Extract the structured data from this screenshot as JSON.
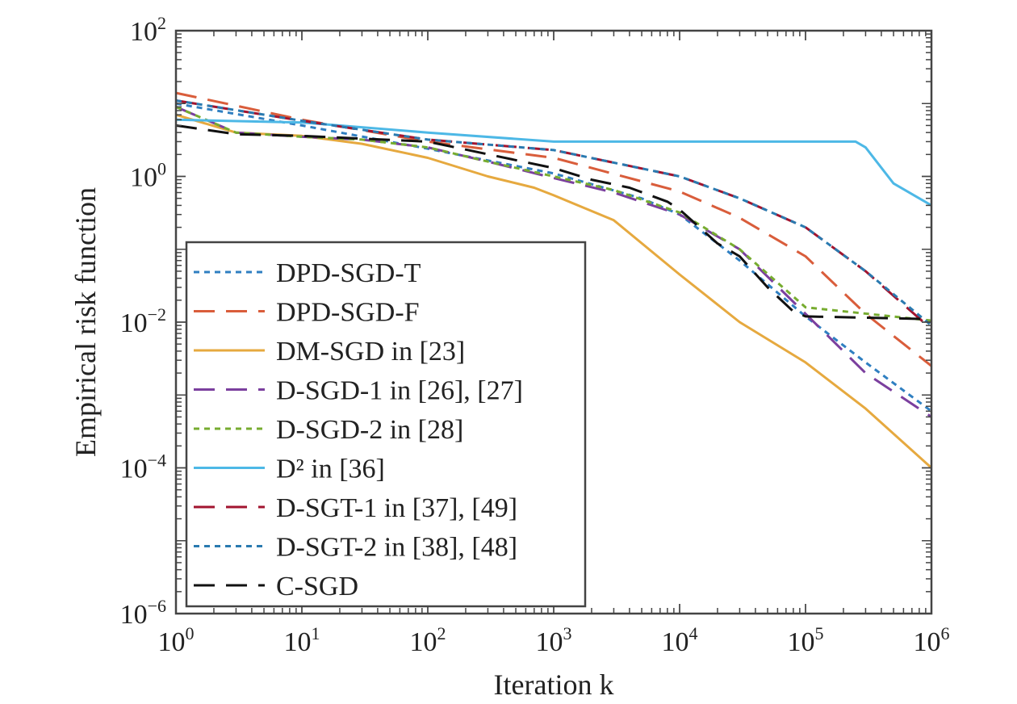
{
  "chart_data": {
    "type": "line",
    "xlabel": "Iteration k",
    "ylabel": "Empirical risk function",
    "x_scale": "log",
    "y_scale": "log",
    "xlim": [
      1,
      1000000
    ],
    "ylim": [
      1e-06,
      100
    ],
    "x_ticks": [
      {
        "value": 1,
        "base": "10",
        "exp": "0"
      },
      {
        "value": 10,
        "base": "10",
        "exp": "1"
      },
      {
        "value": 100,
        "base": "10",
        "exp": "2"
      },
      {
        "value": 1000,
        "base": "10",
        "exp": "3"
      },
      {
        "value": 10000,
        "base": "10",
        "exp": "4"
      },
      {
        "value": 100000,
        "base": "10",
        "exp": "5"
      },
      {
        "value": 1000000,
        "base": "10",
        "exp": "6"
      }
    ],
    "y_ticks": [
      {
        "value": 100,
        "base": "10",
        "exp": "2"
      },
      {
        "value": 1,
        "base": "10",
        "exp": "0"
      },
      {
        "value": 0.01,
        "base": "10",
        "exp": "−2"
      },
      {
        "value": 0.0001,
        "base": "10",
        "exp": "−4"
      },
      {
        "value": 1e-06,
        "base": "10",
        "exp": "−6"
      }
    ],
    "grid": false,
    "legend_position": "bottom-left",
    "series": [
      {
        "name": "DPD-SGD-T",
        "color": "#2f7fc1",
        "dash": "dotted",
        "x": [
          1,
          10,
          100,
          1000,
          5000,
          10000,
          30000,
          100000,
          300000,
          1000000
        ],
        "y": [
          10,
          5,
          2.4,
          1.1,
          0.5,
          0.3,
          0.07,
          0.012,
          0.0028,
          0.0006
        ]
      },
      {
        "name": "DPD-SGD-F",
        "color": "#d95d3b",
        "dash": "long-dash",
        "x": [
          1,
          10,
          100,
          1000,
          10000,
          30000,
          100000,
          300000,
          1000000
        ],
        "y": [
          14,
          6,
          3,
          1.8,
          0.62,
          0.27,
          0.08,
          0.013,
          0.0025
        ]
      },
      {
        "name": "DM-SGD in [23]",
        "color": "#e6a93f",
        "dash": "solid",
        "x": [
          1,
          3,
          10,
          30,
          100,
          300,
          700,
          1000,
          3000,
          10000,
          30000,
          100000,
          300000,
          1000000
        ],
        "y": [
          7,
          4,
          3.6,
          2.8,
          1.8,
          1.0,
          0.7,
          0.55,
          0.25,
          0.045,
          0.01,
          0.0028,
          0.00065,
          0.0001
        ]
      },
      {
        "name": "D-SGD-1 in [26], [27]",
        "color": "#7b3f9e",
        "dash": "long-dash",
        "x": [
          1,
          3,
          10,
          30,
          100,
          300,
          1000,
          3000,
          10000,
          30000,
          100000,
          300000,
          1000000
        ],
        "y": [
          9,
          4,
          3.5,
          3.2,
          2.5,
          1.6,
          0.95,
          0.6,
          0.3,
          0.1,
          0.013,
          0.002,
          0.0005
        ]
      },
      {
        "name": "D-SGD-2 in [28]",
        "color": "#77ac30",
        "dash": "dotted",
        "x": [
          1,
          3,
          10,
          30,
          100,
          300,
          1000,
          3000,
          10000,
          30000,
          100000,
          1000000
        ],
        "y": [
          9,
          4,
          3.5,
          3.2,
          2.5,
          1.6,
          1.0,
          0.65,
          0.32,
          0.1,
          0.016,
          0.0105
        ]
      },
      {
        "name": "D² in [36]",
        "color": "#4db8e6",
        "dash": "solid",
        "x": [
          1,
          10,
          100,
          1000,
          10000,
          100000,
          250000,
          300000,
          500000,
          1000000
        ],
        "y": [
          6,
          5.5,
          4,
          3,
          3,
          3,
          3,
          2.5,
          0.8,
          0.4
        ]
      },
      {
        "name": "D-SGT-1 in [37], [49]",
        "color": "#a2142f",
        "dash": "long-dash",
        "x": [
          1,
          10,
          100,
          1000,
          10000,
          30000,
          100000,
          300000,
          1000000
        ],
        "y": [
          11,
          5.8,
          3.2,
          2.3,
          1.0,
          0.5,
          0.2,
          0.05,
          0.008
        ]
      },
      {
        "name": "D-SGT-2 in [38], [48]",
        "color": "#2a7ab0",
        "dash": "dotted",
        "x": [
          1,
          10,
          100,
          1000,
          10000,
          30000,
          100000,
          300000,
          1000000
        ],
        "y": [
          11,
          5.8,
          3.2,
          2.3,
          1.0,
          0.5,
          0.2,
          0.05,
          0.009
        ]
      },
      {
        "name": "C-SGD",
        "color": "#111111",
        "dash": "long-dash",
        "x": [
          1,
          3,
          10,
          30,
          100,
          1000,
          2000,
          4000,
          8000,
          10000,
          20000,
          30000,
          50000,
          80000,
          100000,
          1000000
        ],
        "y": [
          5,
          3.8,
          3.6,
          3.3,
          3,
          1.3,
          0.9,
          0.7,
          0.45,
          0.35,
          0.12,
          0.08,
          0.03,
          0.014,
          0.012,
          0.011
        ]
      }
    ]
  }
}
